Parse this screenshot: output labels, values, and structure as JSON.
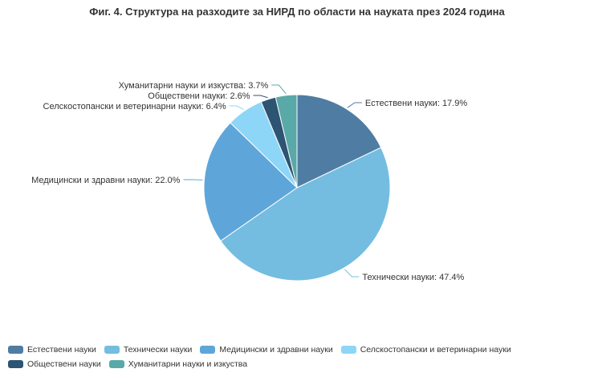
{
  "chart_data": {
    "type": "pie",
    "title": "Фиг. 4. Структура на разходите за НИРД по области на науката през 2024 година",
    "unit": "%",
    "slices": [
      {
        "name": "Естествени науки",
        "value": 17.9,
        "label": "Естествени науки: 17.9%",
        "color": "#4f7ca3"
      },
      {
        "name": "Технически науки",
        "value": 47.4,
        "label": "Технически науки: 47.4%",
        "color": "#74bde0"
      },
      {
        "name": "Медицински и здравни науки",
        "value": 22.0,
        "label": "Медицински и здравни науки: 22.0%",
        "color": "#5ea6da"
      },
      {
        "name": "Селскостопански и ветеринарни науки",
        "value": 6.4,
        "label": "Селскостопански и ветеринарни науки: 6.4%",
        "color": "#8dd6f7"
      },
      {
        "name": "Обществени науки",
        "value": 2.6,
        "label": "Обществени науки: 2.6%",
        "color": "#2e5473"
      },
      {
        "name": "Хуманитарни науки и изкуства",
        "value": 3.7,
        "label": "Хуманитарни науки и изкуства: 3.7%",
        "color": "#59a9a8"
      }
    ],
    "legend_position": "bottom"
  }
}
